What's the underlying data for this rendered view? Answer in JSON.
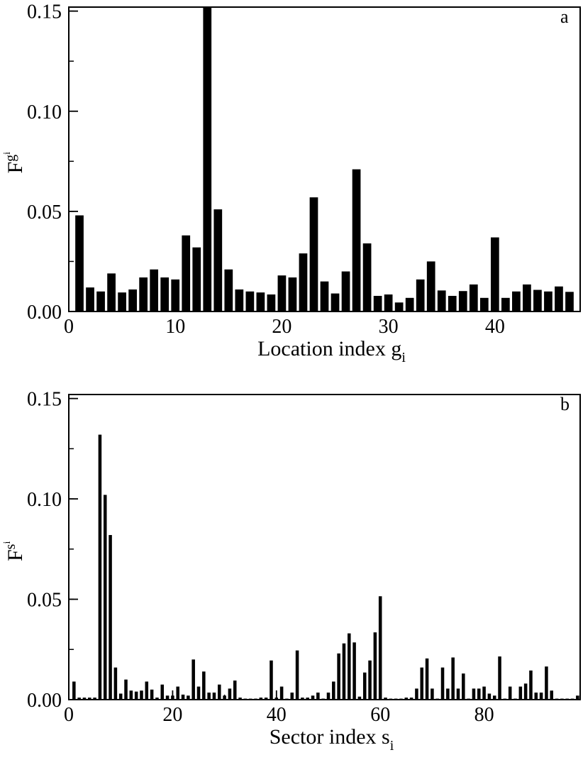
{
  "chart_data": [
    {
      "panel_label": "a",
      "type": "bar",
      "xlabel": "Location index g",
      "xlabel_sub": "i",
      "ylabel": "F",
      "ylabel_sub_base": "g",
      "ylabel_sub_sub": "i",
      "xlim": [
        0,
        48
      ],
      "ylim": [
        0,
        0.152
      ],
      "xticks": [
        0,
        10,
        20,
        30,
        40
      ],
      "xtick_labels": [
        "0",
        "10",
        "20",
        "30",
        "40"
      ],
      "yticks": [
        0,
        0.05,
        0.1,
        0.15
      ],
      "ytick_labels": [
        "0.00",
        "0.05",
        "0.10",
        "0.15"
      ],
      "x": [
        1,
        2,
        3,
        4,
        5,
        6,
        7,
        8,
        9,
        10,
        11,
        12,
        13,
        14,
        15,
        16,
        17,
        18,
        19,
        20,
        21,
        22,
        23,
        24,
        25,
        26,
        27,
        28,
        29,
        30,
        31,
        32,
        33,
        34,
        35,
        36,
        37,
        38,
        39,
        40,
        41,
        42,
        43,
        44,
        45,
        46,
        47
      ],
      "values": [
        0.048,
        0.012,
        0.01,
        0.019,
        0.0095,
        0.011,
        0.017,
        0.021,
        0.017,
        0.016,
        0.038,
        0.032,
        0.152,
        0.051,
        0.021,
        0.011,
        0.01,
        0.0095,
        0.0085,
        0.018,
        0.017,
        0.029,
        0.057,
        0.015,
        0.009,
        0.02,
        0.071,
        0.034,
        0.0078,
        0.0085,
        0.0045,
        0.0068,
        0.016,
        0.025,
        0.0105,
        0.0078,
        0.0102,
        0.0135,
        0.0068,
        0.037,
        0.0068,
        0.01,
        0.0135,
        0.0108,
        0.01,
        0.0125,
        0.0098
      ]
    },
    {
      "panel_label": "b",
      "type": "bar",
      "xlabel": "Sector index s",
      "xlabel_sub": "i",
      "ylabel": "F",
      "ylabel_sub_base": "s",
      "ylabel_sub_sub": "i",
      "xlim": [
        0,
        98.5
      ],
      "ylim": [
        0,
        0.152
      ],
      "xticks": [
        0,
        20,
        40,
        60,
        80
      ],
      "xtick_labels": [
        "0",
        "20",
        "40",
        "60",
        "80"
      ],
      "yticks": [
        0,
        0.05,
        0.1,
        0.15
      ],
      "ytick_labels": [
        "0.00",
        "0.05",
        "0.10",
        "0.15"
      ],
      "x": [
        1,
        2,
        3,
        4,
        5,
        6,
        7,
        8,
        9,
        10,
        11,
        12,
        13,
        14,
        15,
        16,
        17,
        18,
        19,
        20,
        21,
        22,
        23,
        24,
        25,
        26,
        27,
        28,
        29,
        30,
        31,
        32,
        33,
        34,
        35,
        36,
        37,
        38,
        39,
        40,
        41,
        42,
        43,
        44,
        45,
        46,
        47,
        48,
        49,
        50,
        51,
        52,
        53,
        54,
        55,
        56,
        57,
        58,
        59,
        60,
        61,
        62,
        63,
        64,
        65,
        66,
        67,
        68,
        69,
        70,
        71,
        72,
        73,
        74,
        75,
        76,
        77,
        78,
        79,
        80,
        81,
        82,
        83,
        84,
        85,
        86,
        87,
        88,
        89,
        90,
        91,
        92,
        93,
        94,
        95,
        96,
        97,
        98
      ],
      "values": [
        0.009,
        0.001,
        0.001,
        0.001,
        0.001,
        0.132,
        0.102,
        0.082,
        0.016,
        0.003,
        0.01,
        0.0045,
        0.004,
        0.0045,
        0.009,
        0.005,
        0.001,
        0.0075,
        0.002,
        0.002,
        0.0065,
        0.0025,
        0.002,
        0.02,
        0.0065,
        0.014,
        0.0035,
        0.0035,
        0.0075,
        0.002,
        0.0055,
        0.0095,
        0.001,
        0.0005,
        0.0005,
        0.0005,
        0.001,
        0.001,
        0.0195,
        0.001,
        0.0065,
        0.0005,
        0.0035,
        0.0245,
        0.001,
        0.001,
        0.002,
        0.0035,
        0.0005,
        0.0035,
        0.009,
        0.023,
        0.028,
        0.033,
        0.0285,
        0.0015,
        0.0135,
        0.0195,
        0.0335,
        0.0515,
        0.001,
        0.0005,
        0.0005,
        0.0005,
        0.001,
        0.001,
        0.0055,
        0.016,
        0.0205,
        0.0055,
        0.0005,
        0.016,
        0.0055,
        0.021,
        0.0055,
        0.013,
        0.0005,
        0.0055,
        0.0055,
        0.0065,
        0.003,
        0.002,
        0.0215,
        0.0005,
        0.0065,
        0.0005,
        0.0065,
        0.008,
        0.0145,
        0.0035,
        0.0035,
        0.0165,
        0.0045,
        0.0005,
        0.0005,
        0.0005,
        0.0005,
        0.002
      ]
    }
  ]
}
